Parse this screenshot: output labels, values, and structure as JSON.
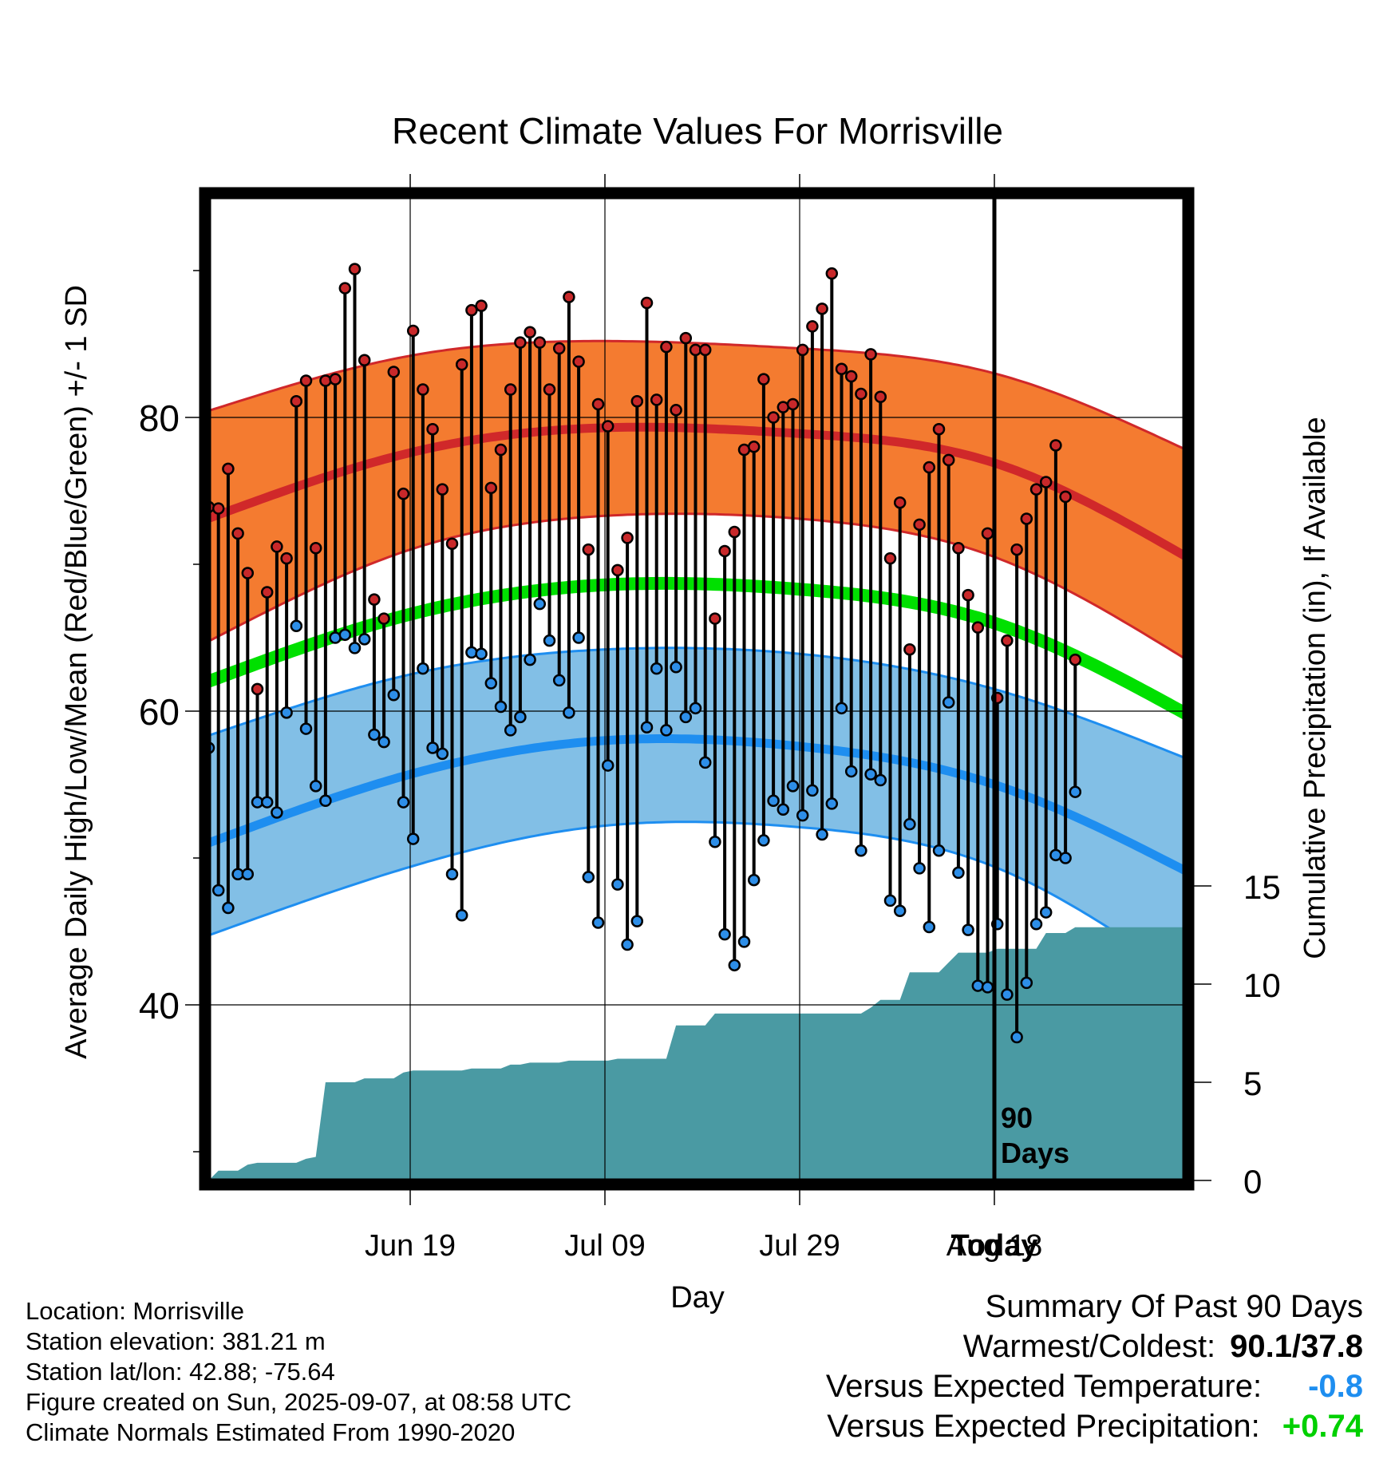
{
  "chart_data": {
    "type": "line",
    "title": "Recent Climate Values For Morrisville",
    "xlabel": "Day",
    "ylabel": "Average Daily High/Low/Mean (Red/Blue/Green) +/- 1 SD",
    "y2label": "Cumulative Precipitation (in), If Available",
    "x_tick_labels": [
      "Jun 19",
      "Jul 09",
      "Jul 29",
      "Aug 18",
      "Today"
    ],
    "y_ticks": [
      40,
      60,
      80
    ],
    "y2_ticks": [
      0,
      5,
      10,
      15
    ],
    "ylim": [
      28,
      95
    ],
    "today_marker": "90\nDays",
    "colors": {
      "high_band": "#f47b30",
      "high_line": "#d0282a",
      "low_band": "#82bfe6",
      "low_line": "#1e8ef0",
      "mean_line": "#00e000",
      "precip": "#4a9aa3",
      "high_dot": "#c8282a",
      "low_dot": "#2d8ee8"
    },
    "normals": {
      "days": [
        0,
        20,
        40,
        60,
        80,
        100
      ],
      "high": [
        73.3,
        77.6,
        79.3,
        78.9,
        76.9,
        70.4
      ],
      "high_upper": [
        80.6,
        84.2,
        85.2,
        84.7,
        83.0,
        77.7
      ],
      "high_lower": [
        65.0,
        71.0,
        73.3,
        73.1,
        70.5,
        63.4
      ],
      "low": [
        51.2,
        55.7,
        58.0,
        57.6,
        55.0,
        49.0
      ],
      "low_upper": [
        58.5,
        62.5,
        64.2,
        63.9,
        61.5,
        56.7
      ],
      "low_lower": [
        44.9,
        49.4,
        52.2,
        52.1,
        49.4,
        41.6
      ],
      "mean": [
        62.2,
        66.6,
        68.6,
        68.3,
        66.0,
        59.7
      ]
    },
    "daily_highs": [
      73.9,
      73.8,
      76.5,
      72.1,
      69.4,
      61.5,
      68.1,
      71.2,
      70.4,
      81.1,
      82.5,
      71.1,
      82.5,
      82.6,
      88.8,
      90.1,
      83.9,
      67.6,
      66.3,
      83.1,
      74.8,
      85.9,
      81.9,
      79.2,
      75.1,
      71.4,
      83.6,
      87.3,
      87.6,
      75.2,
      77.8,
      81.9,
      85.1,
      85.8,
      85.1,
      81.9,
      84.7,
      88.2,
      83.8,
      71.0,
      80.9,
      79.4,
      69.6,
      71.8,
      81.1,
      87.8,
      81.2,
      84.8,
      80.5,
      85.4,
      84.6,
      84.6,
      66.3,
      70.9,
      72.2,
      77.8,
      78.0,
      82.6,
      80.0,
      80.7,
      80.9,
      84.6,
      86.2,
      87.4,
      89.8,
      83.3,
      82.8,
      81.6,
      84.3,
      81.4,
      70.4,
      74.2,
      64.2,
      72.7,
      76.6,
      79.2,
      77.1,
      71.1,
      67.9,
      65.7,
      72.1,
      60.9,
      64.8,
      71.0,
      73.1,
      75.1,
      75.6,
      78.1,
      74.6,
      63.5
    ],
    "daily_lows": [
      57.5,
      47.8,
      46.6,
      48.9,
      48.9,
      53.8,
      53.8,
      53.1,
      59.9,
      65.8,
      58.8,
      54.9,
      53.9,
      65.0,
      65.2,
      64.3,
      64.9,
      58.4,
      57.9,
      61.1,
      53.8,
      51.3,
      62.9,
      57.5,
      57.1,
      48.9,
      46.1,
      64.0,
      63.9,
      61.9,
      60.3,
      58.7,
      59.6,
      63.5,
      67.3,
      64.8,
      62.1,
      59.9,
      65.0,
      48.7,
      45.6,
      56.3,
      48.2,
      44.1,
      45.7,
      58.9,
      62.9,
      58.7,
      63.0,
      59.6,
      60.2,
      56.5,
      51.1,
      44.8,
      42.7,
      44.3,
      48.5,
      51.2,
      53.9,
      53.3,
      54.9,
      52.9,
      54.6,
      51.6,
      53.7,
      60.2,
      55.9,
      50.5,
      55.7,
      55.3,
      47.1,
      46.4,
      52.3,
      49.3,
      45.3,
      50.5,
      60.6,
      49.0,
      45.1,
      41.3,
      41.2,
      45.5,
      40.7,
      37.8,
      41.5,
      45.5,
      46.3,
      50.2,
      50.0,
      54.5
    ],
    "cumulative_precip": [
      0.0,
      0.5,
      0.5,
      0.5,
      0.8,
      0.9,
      0.9,
      0.9,
      0.9,
      0.9,
      1.1,
      1.2,
      5.0,
      5.0,
      5.0,
      5.0,
      5.2,
      5.2,
      5.2,
      5.2,
      5.5,
      5.6,
      5.6,
      5.6,
      5.6,
      5.6,
      5.6,
      5.7,
      5.7,
      5.7,
      5.7,
      5.9,
      5.9,
      6.0,
      6.0,
      6.0,
      6.0,
      6.1,
      6.1,
      6.1,
      6.1,
      6.1,
      6.2,
      6.2,
      6.2,
      6.2,
      6.2,
      6.2,
      7.9,
      7.9,
      7.9,
      7.9,
      8.5,
      8.5,
      8.5,
      8.5,
      8.5,
      8.5,
      8.5,
      8.5,
      8.5,
      8.5,
      8.5,
      8.5,
      8.5,
      8.5,
      8.5,
      8.5,
      8.8,
      9.2,
      9.2,
      9.2,
      10.6,
      10.6,
      10.6,
      10.6,
      11.1,
      11.6,
      11.6,
      11.6,
      11.6,
      11.8,
      11.8,
      11.8,
      11.8,
      11.8,
      12.6,
      12.6,
      12.6,
      12.9,
      12.9,
      12.9,
      12.9,
      12.9,
      12.9,
      12.9,
      12.9,
      12.9,
      12.9,
      12.9
    ]
  },
  "footer": {
    "location": "Location: Morrisville",
    "elevation": "Station elevation: 381.21 m",
    "latlon": "Station lat/lon: 42.88; -75.64",
    "created": "Figure created on Sun, 2025-09-07, at 08:58 UTC",
    "normals": "Climate Normals Estimated From 1990-2020"
  },
  "summary": {
    "title": "Summary Of Past 90 Days",
    "warmest_label": "Warmest/Coldest:",
    "warmest_value": "90.1/37.8",
    "temp_label": "Versus Expected Temperature:",
    "temp_value": "-0.8",
    "temp_color": "#1e8ef0",
    "precip_label": "Versus Expected Precipitation:",
    "precip_value": "+0.74",
    "precip_color": "#00d000"
  }
}
